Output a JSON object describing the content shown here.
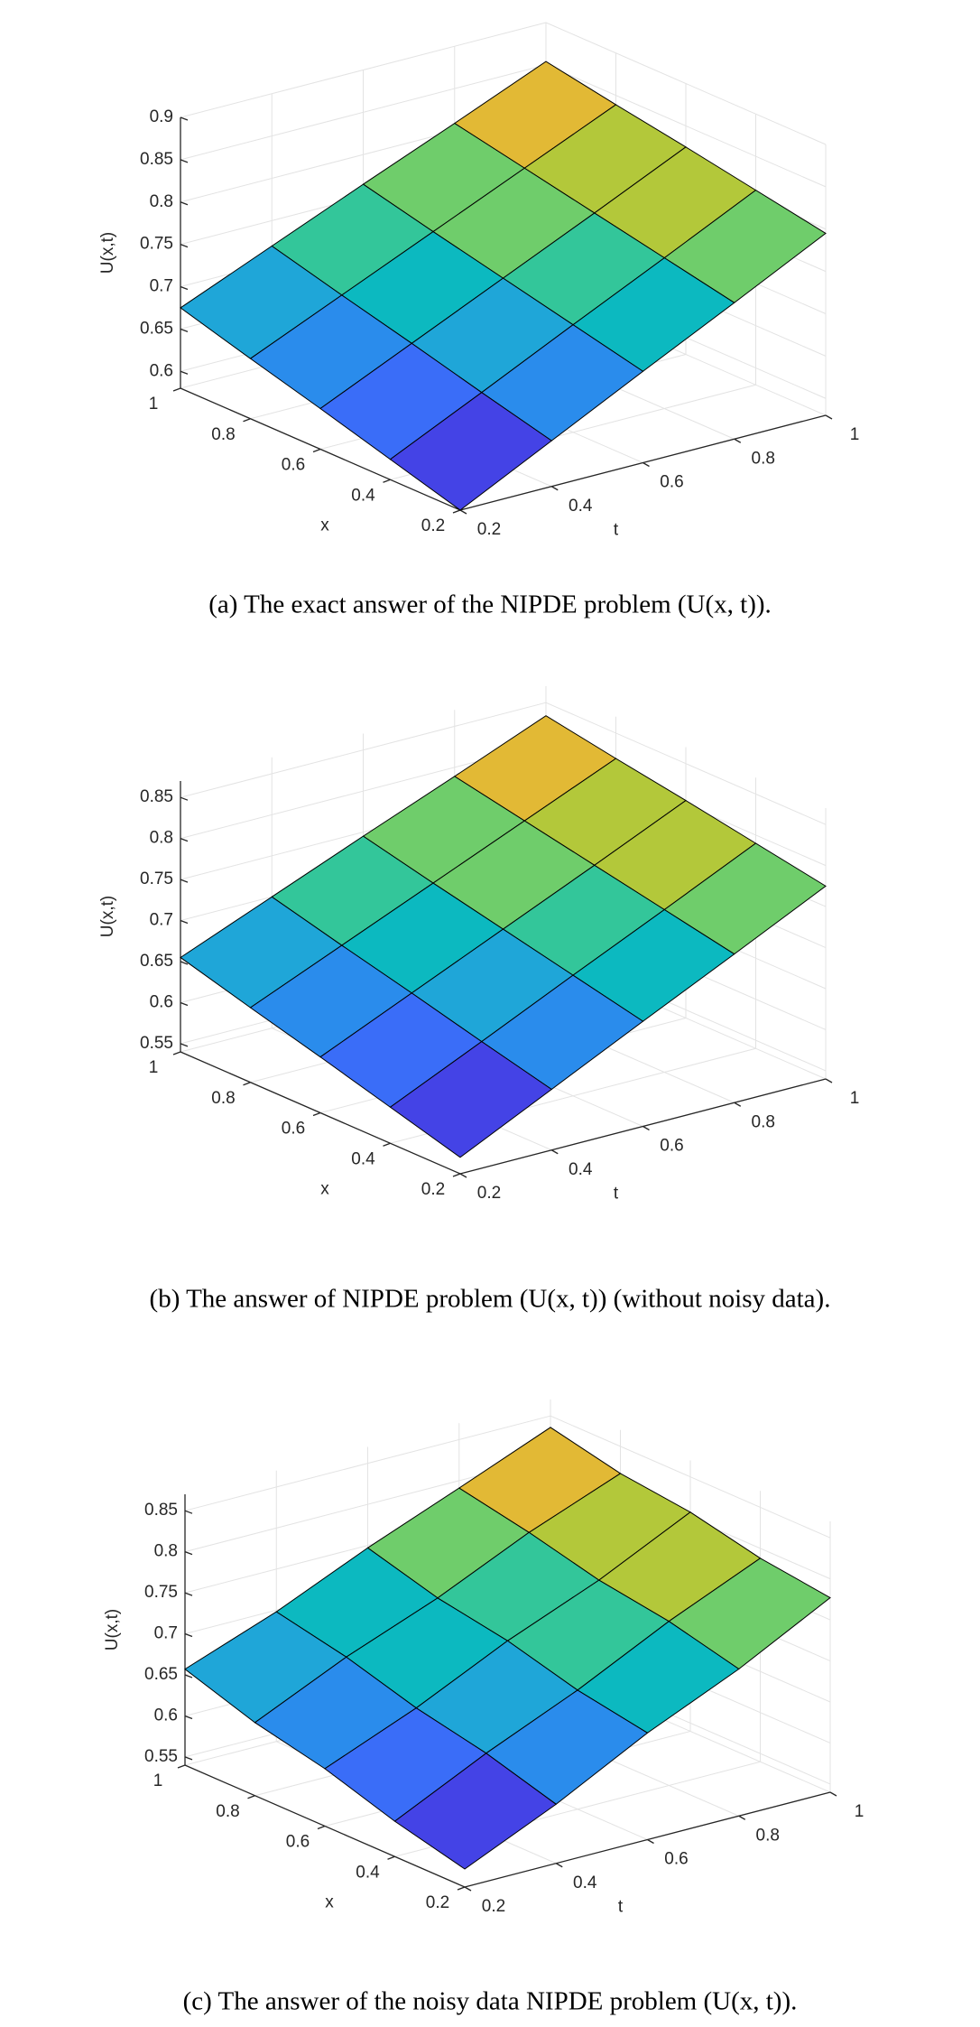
{
  "chart_data": [
    {
      "type": "surface",
      "caption": "(a) The exact answer of the NIPDE problem (U(x, t)).",
      "xlabel": "x",
      "ylabel": "t",
      "zlabel": "U(x,t)",
      "x": [
        0.2,
        0.4,
        0.6,
        0.8,
        1
      ],
      "y": [
        0.2,
        0.4,
        0.6,
        0.8,
        1
      ],
      "z": [
        [
          0.58,
          0.634,
          0.688,
          0.741,
          0.795
        ],
        [
          0.604,
          0.655,
          0.707,
          0.758,
          0.81
        ],
        [
          0.628,
          0.677,
          0.726,
          0.775,
          0.825
        ],
        [
          0.651,
          0.698,
          0.745,
          0.792,
          0.839
        ],
        [
          0.675,
          0.72,
          0.765,
          0.809,
          0.854
        ]
      ],
      "xlim": [
        0.2,
        1
      ],
      "ylim": [
        0.2,
        1
      ],
      "zlim": [
        0.58,
        0.9
      ],
      "xticks": [
        0.2,
        0.4,
        0.6,
        0.8,
        1
      ],
      "yticks": [
        0.2,
        0.4,
        0.6,
        0.8,
        1
      ],
      "zticks": [
        0.6,
        0.65,
        0.7,
        0.75,
        0.8,
        0.85,
        0.9
      ],
      "grid": true,
      "edgecolor": "#000000",
      "colormap": [
        "#3e26a8",
        "#4443e6",
        "#3a6df8",
        "#2a8cec",
        "#1fa6d8",
        "#0cb9c0",
        "#33c69a",
        "#6fcd6b",
        "#b3c83a",
        "#e2b935",
        "#f5b839"
      ]
    },
    {
      "type": "surface",
      "caption": "(b) The answer of NIPDE problem (U(x, t)) (without noisy data).",
      "xlabel": "x",
      "ylabel": "t",
      "zlabel": "U(x,t)",
      "x": [
        0.2,
        0.4,
        0.6,
        0.8,
        1
      ],
      "y": [
        0.2,
        0.4,
        0.6,
        0.8,
        1
      ],
      "z": [
        [
          0.56,
          0.614,
          0.668,
          0.721,
          0.775
        ],
        [
          0.584,
          0.635,
          0.687,
          0.738,
          0.79
        ],
        [
          0.608,
          0.657,
          0.706,
          0.755,
          0.805
        ],
        [
          0.631,
          0.678,
          0.725,
          0.772,
          0.819
        ],
        [
          0.655,
          0.7,
          0.745,
          0.789,
          0.834
        ]
      ],
      "xlim": [
        0.2,
        1
      ],
      "ylim": [
        0.2,
        1
      ],
      "zlim": [
        0.54,
        0.87
      ],
      "xticks": [
        0.2,
        0.4,
        0.6,
        0.8,
        1
      ],
      "yticks": [
        0.2,
        0.4,
        0.6,
        0.8,
        1
      ],
      "zticks": [
        0.55,
        0.6,
        0.65,
        0.7,
        0.75,
        0.8,
        0.85
      ],
      "grid": true,
      "edgecolor": "#000000",
      "colormap": [
        "#3e26a8",
        "#4443e6",
        "#3a6df8",
        "#2a8cec",
        "#1fa6d8",
        "#0cb9c0",
        "#33c69a",
        "#6fcd6b",
        "#b3c83a",
        "#e2b935",
        "#f5b839"
      ]
    },
    {
      "type": "surface",
      "caption": "(c) The answer of the noisy data NIPDE problem (U(x, t)).",
      "xlabel": "x",
      "ylabel": "t",
      "zlabel": "U(x,t)",
      "x": [
        0.2,
        0.4,
        0.6,
        0.8,
        1
      ],
      "y": [
        0.2,
        0.4,
        0.6,
        0.8,
        1
      ],
      "z": [
        [
          0.562,
          0.612,
          0.67,
          0.719,
          0.777
        ],
        [
          0.583,
          0.637,
          0.685,
          0.74,
          0.788
        ],
        [
          0.61,
          0.655,
          0.708,
          0.753,
          0.807
        ],
        [
          0.629,
          0.68,
          0.723,
          0.774,
          0.817
        ],
        [
          0.657,
          0.698,
          0.747,
          0.791,
          0.836
        ]
      ],
      "xlim": [
        0.2,
        1
      ],
      "ylim": [
        0.2,
        1
      ],
      "zlim": [
        0.54,
        0.87
      ],
      "xticks": [
        0.2,
        0.4,
        0.6,
        0.8,
        1
      ],
      "yticks": [
        0.2,
        0.4,
        0.6,
        0.8,
        1
      ],
      "zticks": [
        0.55,
        0.6,
        0.65,
        0.7,
        0.75,
        0.8,
        0.85
      ],
      "grid": true,
      "edgecolor": "#000000",
      "colormap": [
        "#3e26a8",
        "#4443e6",
        "#3a6df8",
        "#2a8cec",
        "#1fa6d8",
        "#0cb9c0",
        "#33c69a",
        "#6fcd6b",
        "#b3c83a",
        "#e2b935",
        "#f5b839"
      ]
    }
  ]
}
